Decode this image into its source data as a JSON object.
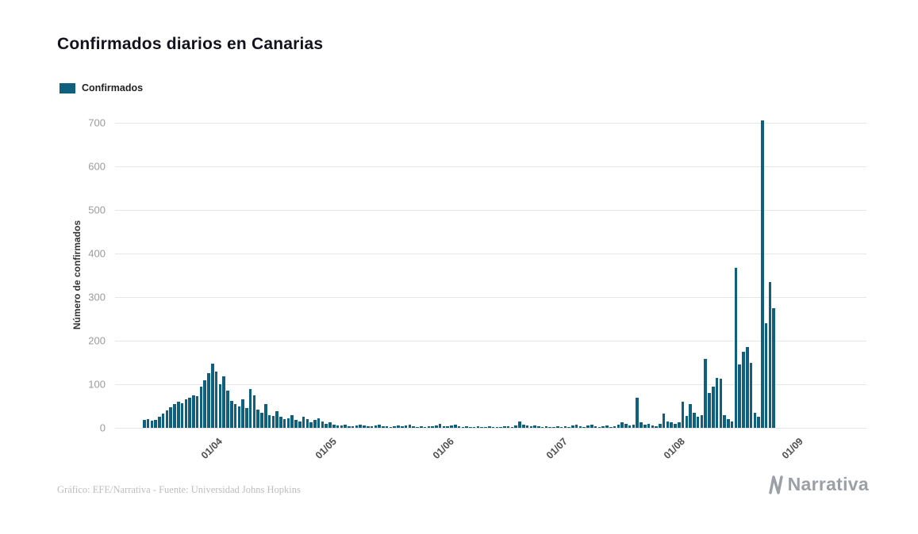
{
  "title": "Confirmados diarios en Canarias",
  "legend": {
    "label": "Confirmados"
  },
  "footer": {
    "credit": "Gráfico: EFE/Narrativa - Fuente: Universidad Johns Hopkins",
    "brand": "Narrativa"
  },
  "colors": {
    "bar": "#0f5f7f",
    "grid": "#e6e6e6",
    "axis_text": "#9b9b9b",
    "title_text": "#13131f"
  },
  "chart_data": {
    "type": "bar",
    "title": "Confirmados diarios en Canarias",
    "series_name": "Confirmados",
    "xlabel": "",
    "ylabel": "Número de confirmados",
    "ylim": [
      0,
      700
    ],
    "yticks": [
      0,
      100,
      200,
      300,
      400,
      500,
      600,
      700
    ],
    "grid": "horizontal",
    "legend_position": "top-left",
    "x_tick_labels": [
      {
        "label": "01/04",
        "index": 19
      },
      {
        "label": "01/05",
        "index": 49
      },
      {
        "label": "01/06",
        "index": 80
      },
      {
        "label": "01/07",
        "index": 110
      },
      {
        "label": "01/08",
        "index": 141
      },
      {
        "label": "01/09",
        "index": 172
      }
    ],
    "categories": [
      "13/03",
      "14/03",
      "15/03",
      "16/03",
      "17/03",
      "18/03",
      "19/03",
      "20/03",
      "21/03",
      "22/03",
      "23/03",
      "24/03",
      "25/03",
      "26/03",
      "27/03",
      "28/03",
      "29/03",
      "30/03",
      "31/03",
      "01/04",
      "02/04",
      "03/04",
      "04/04",
      "05/04",
      "06/04",
      "07/04",
      "08/04",
      "09/04",
      "10/04",
      "11/04",
      "12/04",
      "13/04",
      "14/04",
      "15/04",
      "16/04",
      "17/04",
      "18/04",
      "19/04",
      "20/04",
      "21/04",
      "22/04",
      "23/04",
      "24/04",
      "25/04",
      "26/04",
      "27/04",
      "28/04",
      "29/04",
      "30/04",
      "01/05",
      "02/05",
      "03/05",
      "04/05",
      "05/05",
      "06/05",
      "07/05",
      "08/05",
      "09/05",
      "10/05",
      "11/05",
      "12/05",
      "13/05",
      "14/05",
      "15/05",
      "16/05",
      "17/05",
      "18/05",
      "19/05",
      "20/05",
      "21/05",
      "22/05",
      "23/05",
      "24/05",
      "25/05",
      "26/05",
      "27/05",
      "28/05",
      "29/05",
      "30/05",
      "31/05",
      "01/06",
      "02/06",
      "03/06",
      "04/06",
      "05/06",
      "06/06",
      "07/06",
      "08/06",
      "09/06",
      "10/06",
      "11/06",
      "12/06",
      "13/06",
      "14/06",
      "15/06",
      "16/06",
      "17/06",
      "18/06",
      "19/06",
      "20/06",
      "21/06",
      "22/06",
      "23/06",
      "24/06",
      "25/06",
      "26/06",
      "27/06",
      "28/06",
      "29/06",
      "30/06",
      "01/07",
      "02/07",
      "03/07",
      "04/07",
      "05/07",
      "06/07",
      "07/07",
      "08/07",
      "09/07",
      "10/07",
      "11/07",
      "12/07",
      "13/07",
      "14/07",
      "15/07",
      "16/07",
      "17/07",
      "18/07",
      "19/07",
      "20/07",
      "21/07",
      "22/07",
      "23/07",
      "24/07",
      "25/07",
      "26/07",
      "27/07",
      "28/07",
      "29/07",
      "30/07",
      "31/07",
      "01/08",
      "02/08",
      "03/08",
      "04/08",
      "05/08",
      "06/08",
      "07/08",
      "08/08",
      "09/08",
      "10/08",
      "11/08",
      "12/08",
      "13/08",
      "14/08",
      "15/08",
      "16/08",
      "17/08",
      "18/08",
      "19/08",
      "20/08",
      "21/08",
      "22/08",
      "23/08",
      "24/08",
      "25/08",
      "26/08",
      "27/08",
      "28/08",
      "29/08",
      "30/08",
      "31/08"
    ],
    "values": [
      18,
      20,
      17,
      19,
      25,
      33,
      40,
      48,
      55,
      60,
      57,
      65,
      70,
      75,
      72,
      95,
      110,
      125,
      148,
      130,
      100,
      118,
      85,
      62,
      55,
      50,
      66,
      45,
      90,
      75,
      42,
      35,
      55,
      30,
      28,
      38,
      25,
      20,
      22,
      30,
      18,
      15,
      25,
      20,
      12,
      18,
      22,
      15,
      10,
      12,
      8,
      6,
      5,
      7,
      4,
      3,
      5,
      8,
      6,
      4,
      3,
      5,
      7,
      4,
      3,
      2,
      4,
      5,
      3,
      6,
      8,
      4,
      2,
      3,
      2,
      4,
      3,
      6,
      9,
      4,
      3,
      5,
      8,
      4,
      2,
      3,
      1,
      2,
      4,
      2,
      1,
      3,
      2,
      1,
      2,
      4,
      3,
      2,
      5,
      15,
      8,
      5,
      3,
      6,
      4,
      2,
      3,
      1,
      2,
      4,
      2,
      3,
      1,
      5,
      8,
      3,
      2,
      6,
      8,
      4,
      2,
      3,
      5,
      2,
      4,
      8,
      12,
      10,
      5,
      8,
      70,
      12,
      8,
      10,
      6,
      4,
      10,
      33,
      15,
      12,
      10,
      12,
      60,
      28,
      55,
      35,
      25,
      30,
      158,
      80,
      95,
      115,
      112,
      30,
      20,
      15,
      368,
      145,
      175,
      185,
      150,
      35,
      25,
      705,
      240,
      335,
      275,
      0,
      0,
      0,
      0,
      0
    ]
  }
}
